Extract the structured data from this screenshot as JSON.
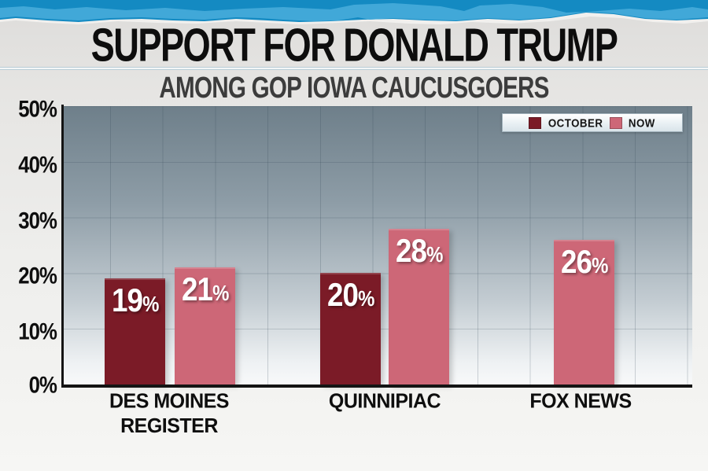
{
  "header": {
    "title": "SUPPORT FOR DONALD TRUMP",
    "subtitle": "AMONG GOP IOWA CAUCUSGOERS"
  },
  "banner": {
    "color_dark_blue": "#148ac2",
    "color_light_blue": "#41a8d8",
    "color_fringe": "#f1f0ee"
  },
  "colors": {
    "october": "#7b1b27",
    "now": "#cd6777",
    "axis": "#141414",
    "title_text": "#0d0d0d",
    "subtitle_text": "#3c3c3c"
  },
  "percent_sign": "%",
  "legend": {
    "items": [
      {
        "label": "OCTOBER",
        "color": "#7b1b27"
      },
      {
        "label": "NOW",
        "color": "#cd6777"
      }
    ]
  },
  "chart_data": {
    "type": "bar",
    "title": "SUPPORT FOR DONALD TRUMP",
    "subtitle": "AMONG GOP IOWA CAUCUSGOERS",
    "categories": [
      "DES MOINES REGISTER",
      "QUINNIPIAC",
      "FOX NEWS"
    ],
    "series": [
      {
        "name": "OCTOBER",
        "color": "#7b1b27",
        "values": [
          19,
          20,
          null
        ]
      },
      {
        "name": "NOW",
        "color": "#cd6777",
        "values": [
          21,
          28,
          26
        ]
      }
    ],
    "data_labels": [
      {
        "category": "DES MOINES REGISTER",
        "series": "OCTOBER",
        "number": 19
      },
      {
        "category": "DES MOINES REGISTER",
        "series": "NOW",
        "number": 21
      },
      {
        "category": "QUINNIPIAC",
        "series": "OCTOBER",
        "number": 20
      },
      {
        "category": "QUINNIPIAC",
        "series": "NOW",
        "number": 28
      },
      {
        "category": "FOX NEWS",
        "series": "NOW",
        "number": 26
      }
    ],
    "ylabel": "",
    "ylim": [
      0,
      50
    ],
    "yticks": [
      "50%",
      "40%",
      "30%",
      "20%",
      "10%",
      "0%"
    ],
    "grid": true,
    "legend_position": "top-right"
  }
}
